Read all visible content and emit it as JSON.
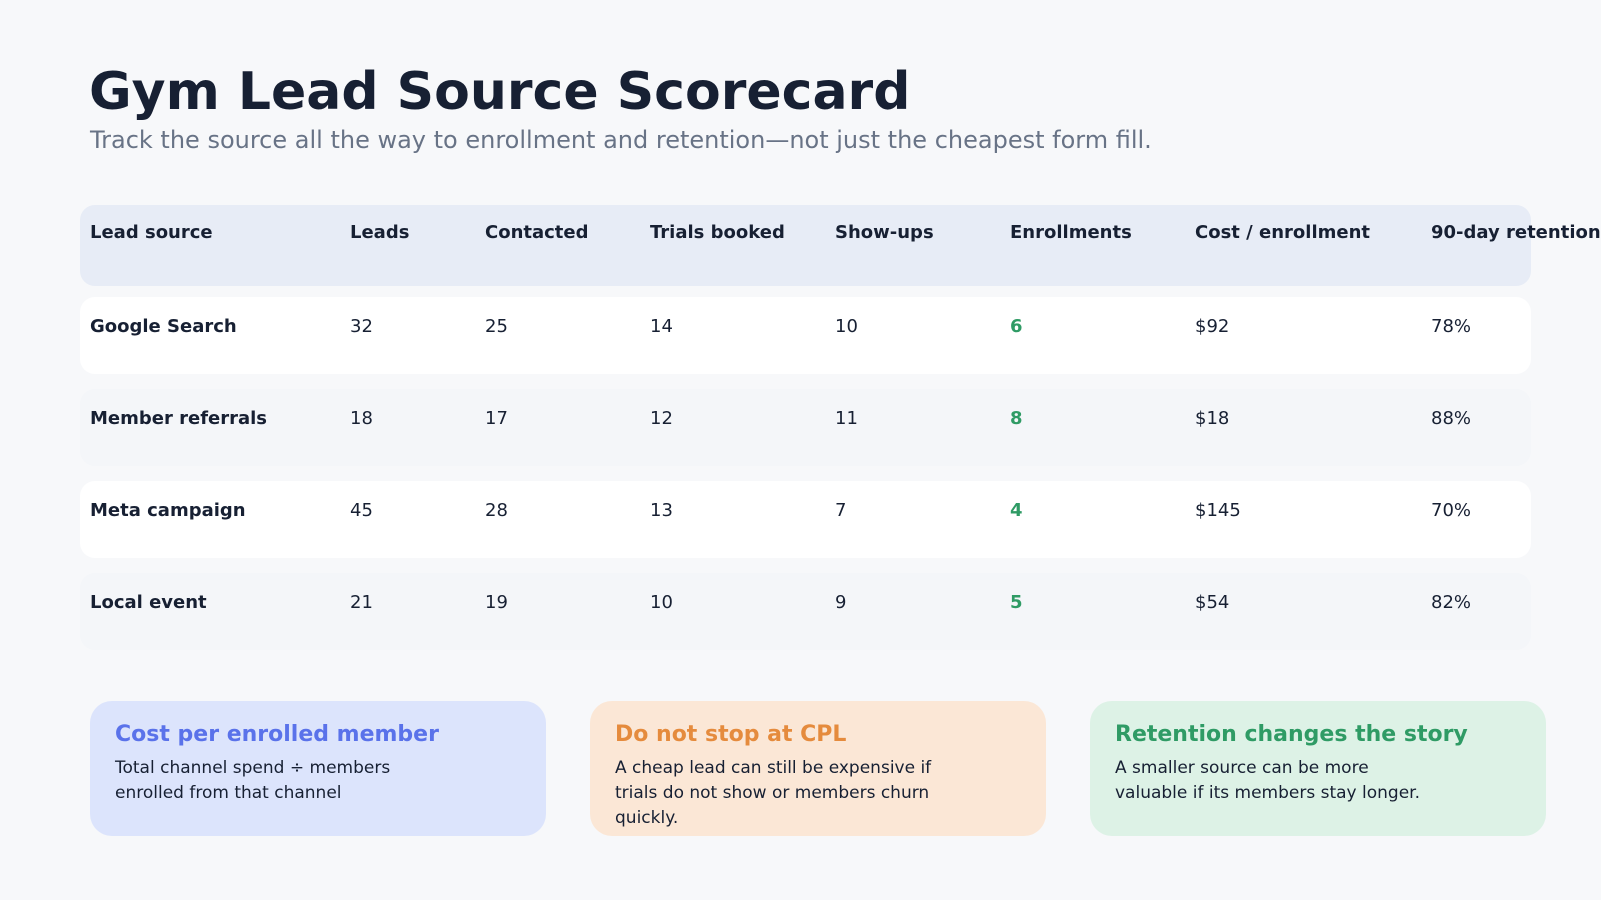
{
  "header": {
    "title": "Gym Lead Source Scorecard",
    "subtitle": "Track the source all the way to enrollment and retention—not just the cheapest form fill."
  },
  "table": {
    "columns": [
      "Lead source",
      "Leads",
      "Contacted",
      "Trials booked",
      "Show-ups",
      "Enrollments",
      "Cost / enrollment",
      "90-day retention"
    ],
    "rows": [
      [
        "Google Search",
        "32",
        "25",
        "14",
        "10",
        "6",
        "$92",
        "78%"
      ],
      [
        "Member referrals",
        "18",
        "17",
        "12",
        "11",
        "8",
        "$18",
        "88%"
      ],
      [
        "Meta campaign",
        "45",
        "28",
        "13",
        "7",
        "4",
        "$145",
        "70%"
      ],
      [
        "Local event",
        "21",
        "19",
        "10",
        "9",
        "5",
        "$54",
        "82%"
      ]
    ]
  },
  "cards": [
    {
      "title": "Cost per enrolled member",
      "body": "Total channel spend ÷ members enrolled from that channel"
    },
    {
      "title": "Do not stop at CPL",
      "body": "A cheap lead can still be expensive if trials do not show or members churn quickly."
    },
    {
      "title": "Retention changes the story",
      "body": "A smaller source can be more valuable if its members stay longer."
    }
  ],
  "colors": {
    "background": "#f7f8fa",
    "header_row": "#e7ecf6",
    "enrollment_text": "#2f9b65",
    "card_blue": "#dce4fc",
    "card_orange": "#fbe7d6",
    "card_green": "#ddf2e6",
    "title_blue": "#5a72ea",
    "title_orange": "#e58b3d",
    "title_green": "#2f9b65"
  }
}
